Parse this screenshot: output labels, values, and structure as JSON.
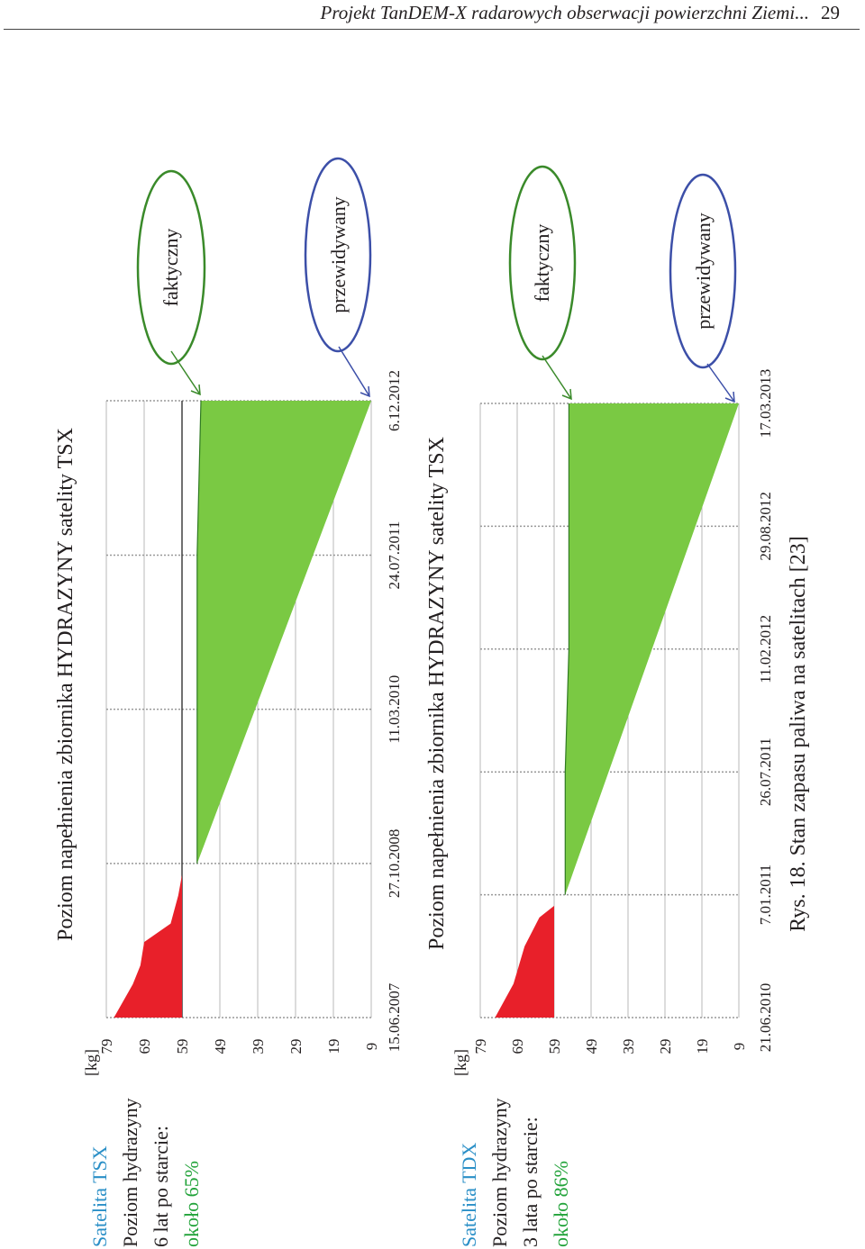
{
  "page": {
    "header": "Projekt TanDEM-X radarowych obserwacji powierzchni Ziemi...",
    "page_number": "29",
    "caption": "Rys. 18. Stan zapasu paliwa na satelitach [23]"
  },
  "colors": {
    "title_blue": "#2a8fc7",
    "percent_green": "#22a33a",
    "actual_fill": "#7ac943",
    "history_fill": "#e8202a",
    "actual_ellipse": "#3a8a2a",
    "predicted_ellipse": "#3c4fa8",
    "grid": "#b8b8b8"
  },
  "panels": [
    {
      "satellite": "Satelita TSX",
      "line1": "Poziom hydrazyny",
      "line2": "6 lat po starcie:",
      "percent": "około 65%",
      "actual_label": "faktyczny",
      "predicted_label": "przewidywany"
    },
    {
      "satellite": "Satelita TDX",
      "line1": "Poziom hydrazyny",
      "line2": "3 lata po starcie:",
      "percent": "około 86%",
      "actual_label": "faktyczny",
      "predicted_label": "przewidywany"
    }
  ],
  "chart_data": [
    {
      "type": "area",
      "title": "Poziom napełnienia zbiornika HYDRAZYNY satelity TSX",
      "ylabel": "[kg]",
      "yticks": [
        79,
        69,
        59,
        49,
        39,
        29,
        19,
        9
      ],
      "xticks": [
        "15.06.2007",
        "27.10.2008",
        "11.03.2010",
        "24.07.2011",
        "6.12.2012"
      ],
      "ylim": [
        9,
        79
      ],
      "xlim": [
        "15.06.2007",
        "6.12.2012"
      ],
      "grid": true,
      "reference_line": 59,
      "series": [
        {
          "name": "faktyczny",
          "color": "#e8202a",
          "points": [
            [
              "15.06.2007",
              77
            ],
            [
              "01.10.2007",
              72
            ],
            [
              "01.12.2007",
              70
            ],
            [
              "15.02.2008",
              69
            ],
            [
              "15.04.2008",
              62
            ],
            [
              "15.07.2008",
              60
            ],
            [
              "20.09.2008",
              59
            ]
          ]
        },
        {
          "name": "faktyczny",
          "color": "#7ac943",
          "points": [
            [
              "27.10.2008",
              55
            ],
            [
              "11.03.2010",
              55
            ],
            [
              "24.07.2011",
              55
            ],
            [
              "6.12.2012",
              54
            ]
          ]
        },
        {
          "name": "przewidywany",
          "color": "#3c4fa8",
          "points": [
            [
              "27.10.2008",
              55
            ],
            [
              "6.12.2012",
              9
            ]
          ]
        }
      ]
    },
    {
      "type": "area",
      "title": "Poziom napełnienia zbiornika HYDRAZYNY satelity TSX",
      "ylabel": "[kg]",
      "yticks": [
        79,
        69,
        59,
        49,
        39,
        29,
        19,
        9
      ],
      "xticks": [
        "21.06.2010",
        "7.01.2011",
        "26.07.2011",
        "11.02.2012",
        "29.08.2012",
        "17.03.2013"
      ],
      "ylim": [
        9,
        79
      ],
      "xlim": [
        "21.06.2010",
        "17.03.2013"
      ],
      "grid": true,
      "series": [
        {
          "name": "faktyczny",
          "color": "#e8202a",
          "points": [
            [
              "21.06.2010",
              75
            ],
            [
              "15.08.2010",
              70
            ],
            [
              "15.10.2010",
              67
            ],
            [
              "01.12.2010",
              63
            ],
            [
              "20.12.2010",
              59
            ]
          ]
        },
        {
          "name": "faktyczny",
          "color": "#7ac943",
          "points": [
            [
              "7.01.2011",
              56
            ],
            [
              "26.07.2011",
              56
            ],
            [
              "11.02.2012",
              55
            ],
            [
              "29.08.2012",
              55
            ],
            [
              "17.03.2013",
              55
            ]
          ]
        },
        {
          "name": "przewidywany",
          "color": "#3c4fa8",
          "points": [
            [
              "7.01.2011",
              56
            ],
            [
              "17.03.2013",
              9
            ]
          ]
        }
      ]
    }
  ]
}
